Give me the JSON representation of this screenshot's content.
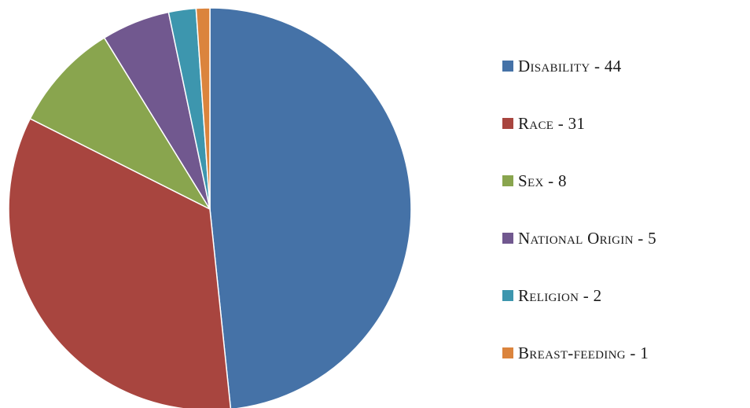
{
  "chart_data": {
    "type": "pie",
    "slices": [
      {
        "label": "Disability - 44",
        "category": "Disability",
        "value": 44,
        "color": "#4572A7"
      },
      {
        "label": "Race - 31",
        "category": "Race",
        "value": 31,
        "color": "#A8453F"
      },
      {
        "label": "Sex - 8",
        "category": "Sex",
        "value": 8,
        "color": "#89A54E"
      },
      {
        "label": "National Origin - 5",
        "category": "National Origin",
        "value": 5,
        "color": "#71588F"
      },
      {
        "label": "Religion - 2",
        "category": "Religion",
        "value": 2,
        "color": "#3D96AE"
      },
      {
        "label": "Breast-feeding - 1",
        "category": "Breast-feeding",
        "value": 1,
        "color": "#DB843D"
      }
    ],
    "legend_position": "right",
    "start_angle": "top",
    "direction": "clockwise"
  }
}
